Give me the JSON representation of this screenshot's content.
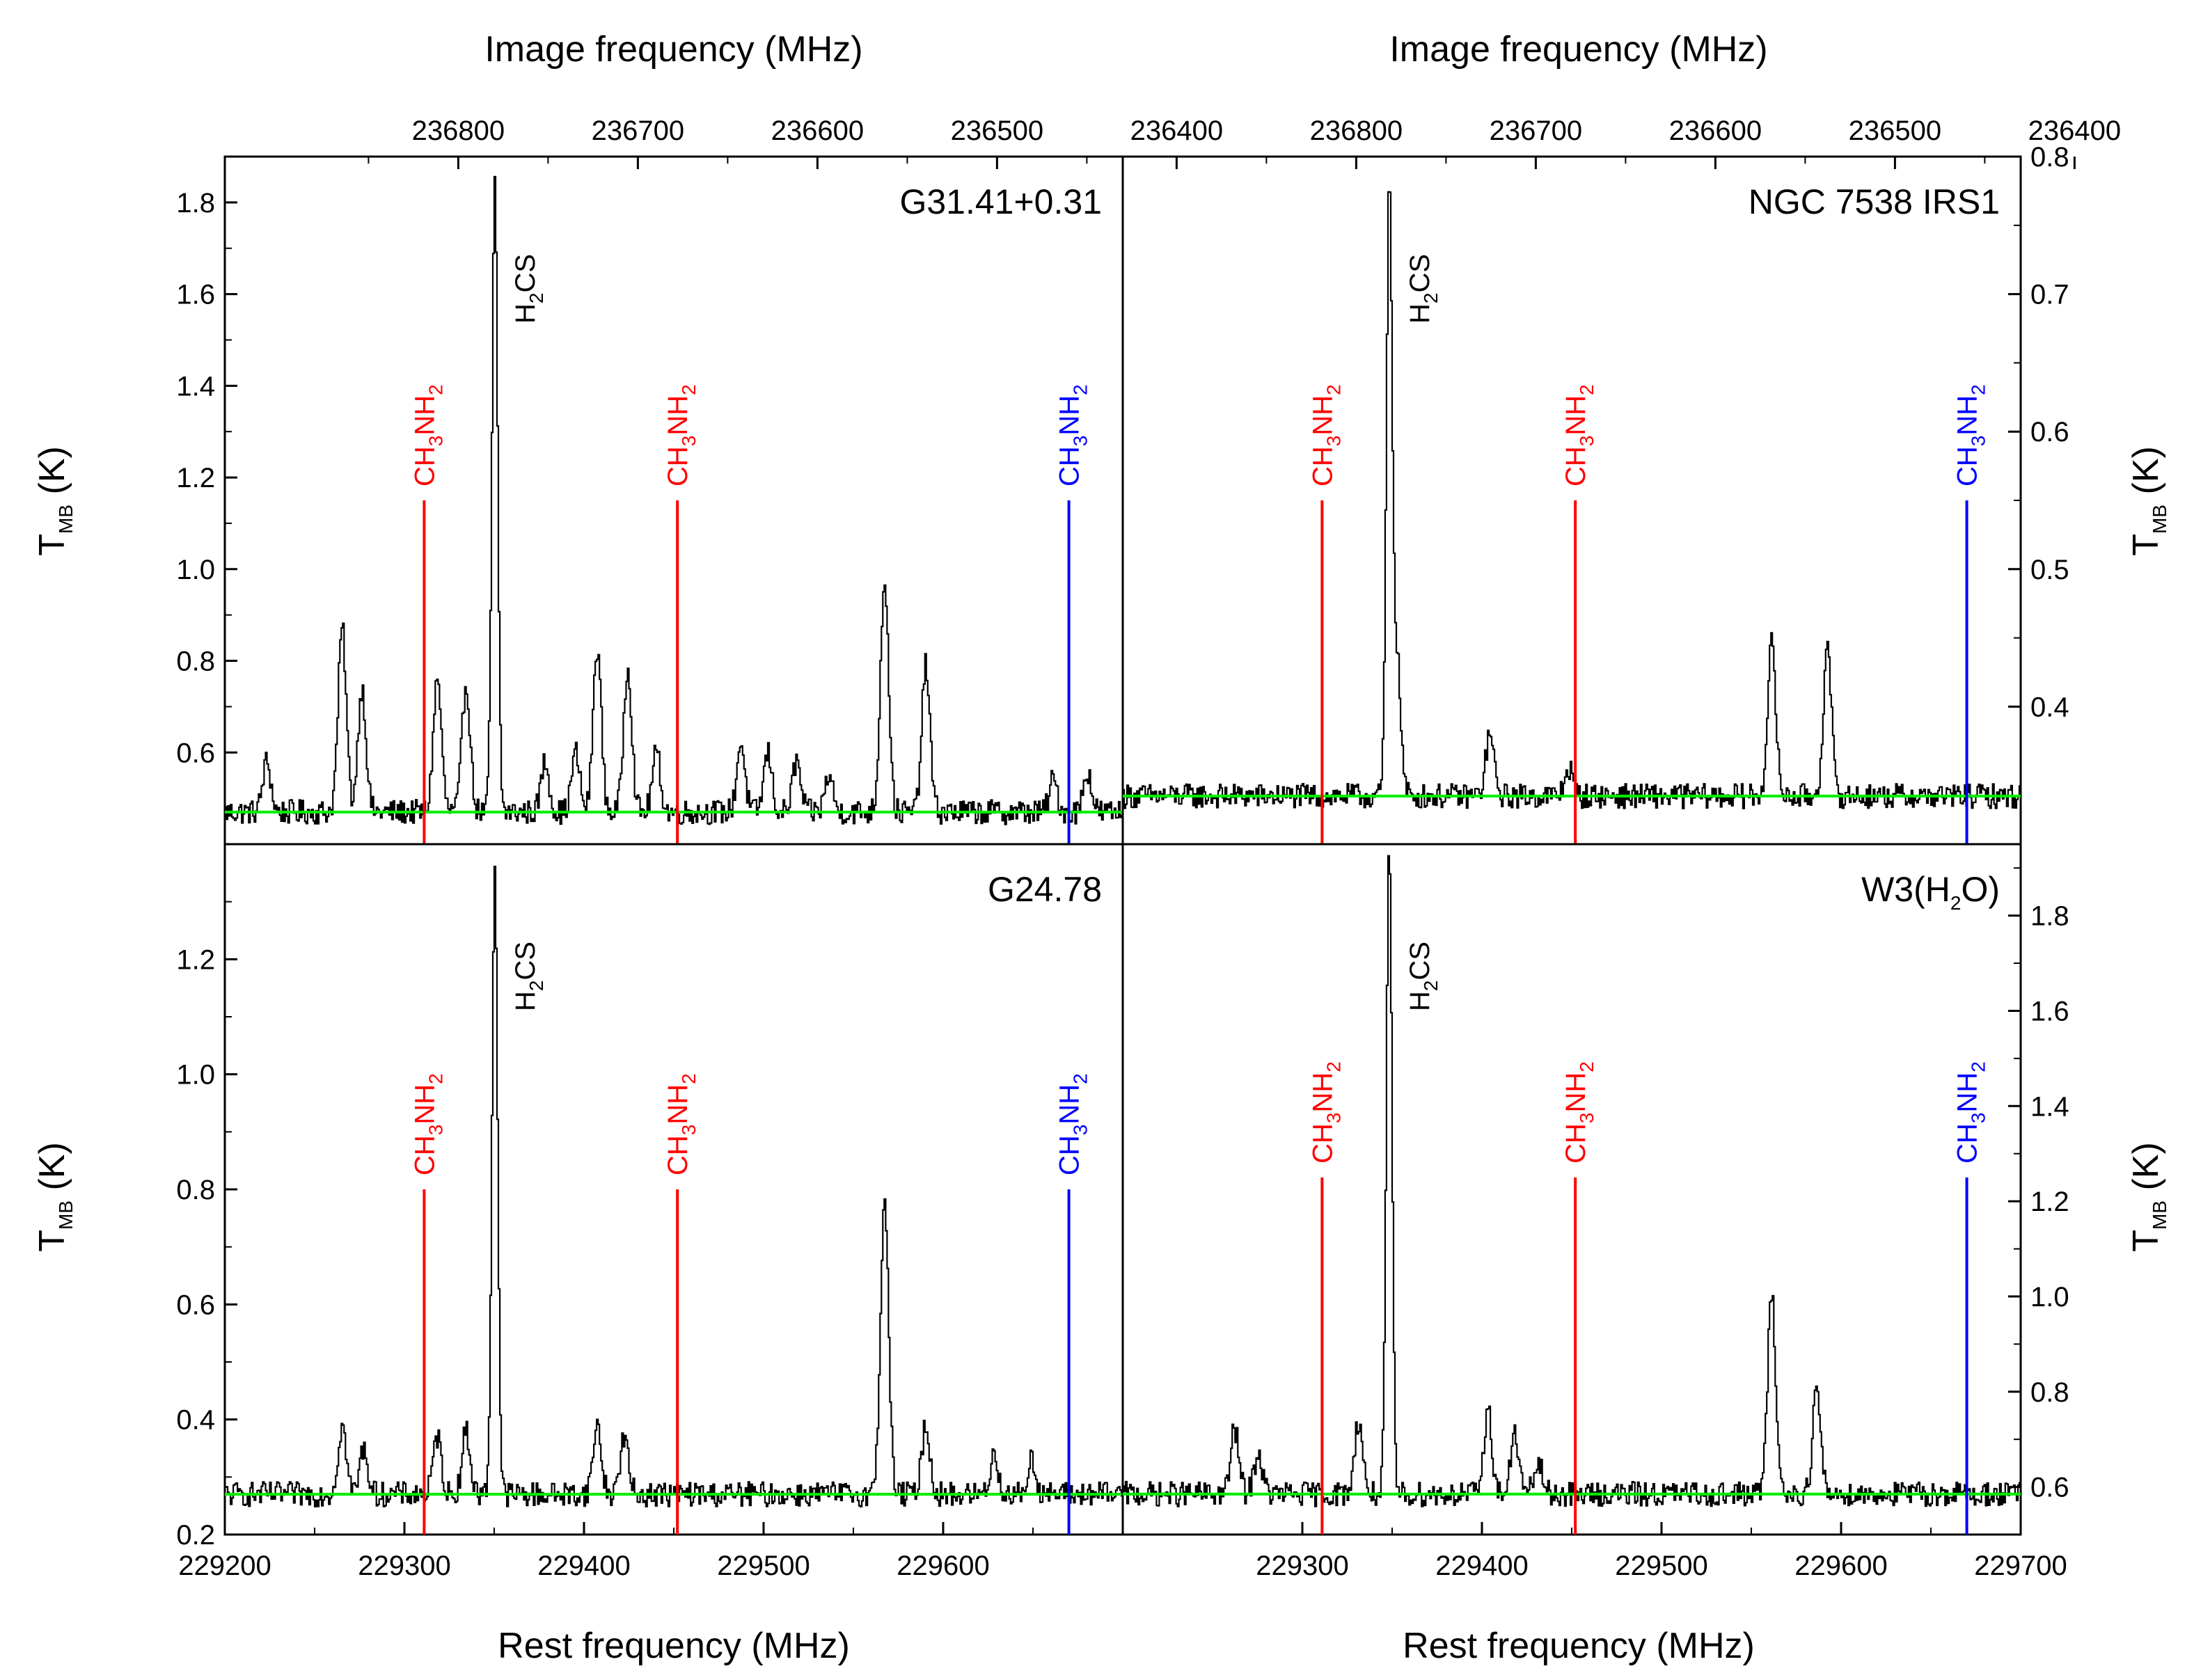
{
  "figure": {
    "top_axis_title": "Image frequency (MHz)",
    "bottom_axis_title": "Rest frequency (MHz)",
    "y_axis_title": {
      "main": "T",
      "sub": "MB",
      "unit": " (K)"
    }
  },
  "chart_data": [
    {
      "type": "line",
      "panel": "top-left",
      "label": "G31.41+0.31",
      "xlim": [
        229200,
        229700
      ],
      "ylim": [
        0.4,
        1.9
      ],
      "yticks": [
        "0.6",
        "0.8",
        "1.0",
        "1.2",
        "1.4",
        "1.6",
        "1.8"
      ],
      "top_ticks": [
        "236800",
        "236700",
        "236600",
        "236500",
        "236400"
      ],
      "baseline": 0.47,
      "peaks": [
        {
          "x": 229223,
          "y": 0.58
        },
        {
          "x": 229265,
          "y": 0.87
        },
        {
          "x": 229276,
          "y": 0.74
        },
        {
          "x": 229318,
          "y": 0.76
        },
        {
          "x": 229334,
          "y": 0.75
        },
        {
          "x": 229350,
          "y": 1.84
        },
        {
          "x": 229378,
          "y": 0.58
        },
        {
          "x": 229395,
          "y": 0.6
        },
        {
          "x": 229407,
          "y": 0.83
        },
        {
          "x": 229424,
          "y": 0.79
        },
        {
          "x": 229440,
          "y": 0.6
        },
        {
          "x": 229487,
          "y": 0.62
        },
        {
          "x": 229502,
          "y": 0.6
        },
        {
          "x": 229518,
          "y": 0.58
        },
        {
          "x": 229536,
          "y": 0.55
        },
        {
          "x": 229567,
          "y": 0.98
        },
        {
          "x": 229590,
          "y": 0.79
        },
        {
          "x": 229661,
          "y": 0.54
        },
        {
          "x": 229680,
          "y": 0.56
        }
      ],
      "markers": [
        {
          "x": 229311,
          "label": "CH",
          "sub1": "3",
          "mid": "NH",
          "sub2": "2",
          "color": "#ff0000",
          "top": 1.15
        },
        {
          "x": 229452,
          "label": "CH",
          "sub1": "3",
          "mid": "NH",
          "sub2": "2",
          "color": "#ff0000",
          "top": 1.15
        },
        {
          "x": 229670,
          "label": "CH",
          "sub1": "3",
          "mid": "NH",
          "sub2": "2",
          "color": "#0000ff",
          "top": 1.15
        }
      ],
      "species": {
        "x": 229350,
        "label": "H",
        "sub": "2",
        "rest": "CS"
      }
    },
    {
      "type": "line",
      "panel": "top-right",
      "label": "NGC 7538 IRS1",
      "xlim": [
        229200,
        229700
      ],
      "ylim": [
        0.3,
        0.8
      ],
      "yticks": [
        "0.4",
        "0.5",
        "0.6",
        "0.7",
        "0.8"
      ],
      "top_ticks": [
        "236800",
        "236700",
        "236600",
        "236500",
        "236400"
      ],
      "baseline": 0.335,
      "peaks": [
        {
          "x": 229348,
          "y": 0.76
        },
        {
          "x": 229352,
          "y": 0.44
        },
        {
          "x": 229404,
          "y": 0.38
        },
        {
          "x": 229448,
          "y": 0.355
        },
        {
          "x": 229561,
          "y": 0.445
        },
        {
          "x": 229592,
          "y": 0.44
        }
      ],
      "markers": [
        {
          "x": 229311,
          "label": "CH",
          "sub1": "3",
          "mid": "NH",
          "sub2": "2",
          "color": "#ff0000",
          "top": 0.55
        },
        {
          "x": 229452,
          "label": "CH",
          "sub1": "3",
          "mid": "NH",
          "sub2": "2",
          "color": "#ff0000",
          "top": 0.55
        },
        {
          "x": 229670,
          "label": "CH",
          "sub1": "3",
          "mid": "NH",
          "sub2": "2",
          "color": "#0000ff",
          "top": 0.55
        }
      ],
      "species": {
        "x": 229348,
        "label": "H",
        "sub": "2",
        "rest": "CS"
      }
    },
    {
      "type": "line",
      "panel": "bottom-left",
      "label": "G24.78",
      "xlim": [
        229200,
        229700
      ],
      "ylim": [
        0.2,
        1.4
      ],
      "yticks": [
        "0.2",
        "0.4",
        "0.6",
        "0.8",
        "1.0",
        "1.2"
      ],
      "xticks": [
        "229200",
        "229300",
        "229400",
        "229500",
        "229600"
      ],
      "baseline": 0.27,
      "peaks": [
        {
          "x": 229265,
          "y": 0.39
        },
        {
          "x": 229277,
          "y": 0.35
        },
        {
          "x": 229318,
          "y": 0.37
        },
        {
          "x": 229334,
          "y": 0.38
        },
        {
          "x": 229350,
          "y": 1.36
        },
        {
          "x": 229407,
          "y": 0.39
        },
        {
          "x": 229422,
          "y": 0.37
        },
        {
          "x": 229567,
          "y": 0.78
        },
        {
          "x": 229590,
          "y": 0.39
        },
        {
          "x": 229628,
          "y": 0.34
        },
        {
          "x": 229649,
          "y": 0.33
        }
      ],
      "markers": [
        {
          "x": 229311,
          "label": "CH",
          "sub1": "3",
          "mid": "NH",
          "sub2": "2",
          "color": "#ff0000",
          "top": 0.8
        },
        {
          "x": 229452,
          "label": "CH",
          "sub1": "3",
          "mid": "NH",
          "sub2": "2",
          "color": "#ff0000",
          "top": 0.8
        },
        {
          "x": 229670,
          "label": "CH",
          "sub1": "3",
          "mid": "NH",
          "sub2": "2",
          "color": "#0000ff",
          "top": 0.8
        }
      ],
      "species": {
        "x": 229350,
        "label": "H",
        "sub": "2",
        "rest": "CS"
      }
    },
    {
      "type": "line",
      "panel": "bottom-right",
      "label": {
        "main": "W3(H",
        "sub": "2",
        "rest": "O)"
      },
      "xlim": [
        229200,
        229700
      ],
      "ylim": [
        0.5,
        1.95
      ],
      "yticks": [
        "0.6",
        "0.8",
        "1.0",
        "1.2",
        "1.4",
        "1.6",
        "1.8"
      ],
      "xticks": [
        "229300",
        "229400",
        "229500",
        "229600",
        "229700"
      ],
      "baseline": 0.585,
      "peaks": [
        {
          "x": 229262,
          "y": 0.72
        },
        {
          "x": 229275,
          "y": 0.67
        },
        {
          "x": 229331,
          "y": 0.74
        },
        {
          "x": 229348,
          "y": 1.94
        },
        {
          "x": 229403,
          "y": 0.76
        },
        {
          "x": 229418,
          "y": 0.71
        },
        {
          "x": 229431,
          "y": 0.65
        },
        {
          "x": 229561,
          "y": 1.0
        },
        {
          "x": 229586,
          "y": 0.8
        }
      ],
      "markers": [
        {
          "x": 229311,
          "label": "CH",
          "sub1": "3",
          "mid": "NH",
          "sub2": "2",
          "color": "#ff0000",
          "top": 1.25
        },
        {
          "x": 229452,
          "label": "CH",
          "sub1": "3",
          "mid": "NH",
          "sub2": "2",
          "color": "#ff0000",
          "top": 1.25
        },
        {
          "x": 229670,
          "label": "CH",
          "sub1": "3",
          "mid": "NH",
          "sub2": "2",
          "color": "#0000ff",
          "top": 1.25
        }
      ],
      "species": {
        "x": 229348,
        "label": "H",
        "sub": "2",
        "rest": "CS"
      }
    }
  ],
  "colors": {
    "spectrum": "#000000",
    "baseline": "#00ee00",
    "marker_red": "#ff0000",
    "marker_blue": "#0000ff"
  }
}
